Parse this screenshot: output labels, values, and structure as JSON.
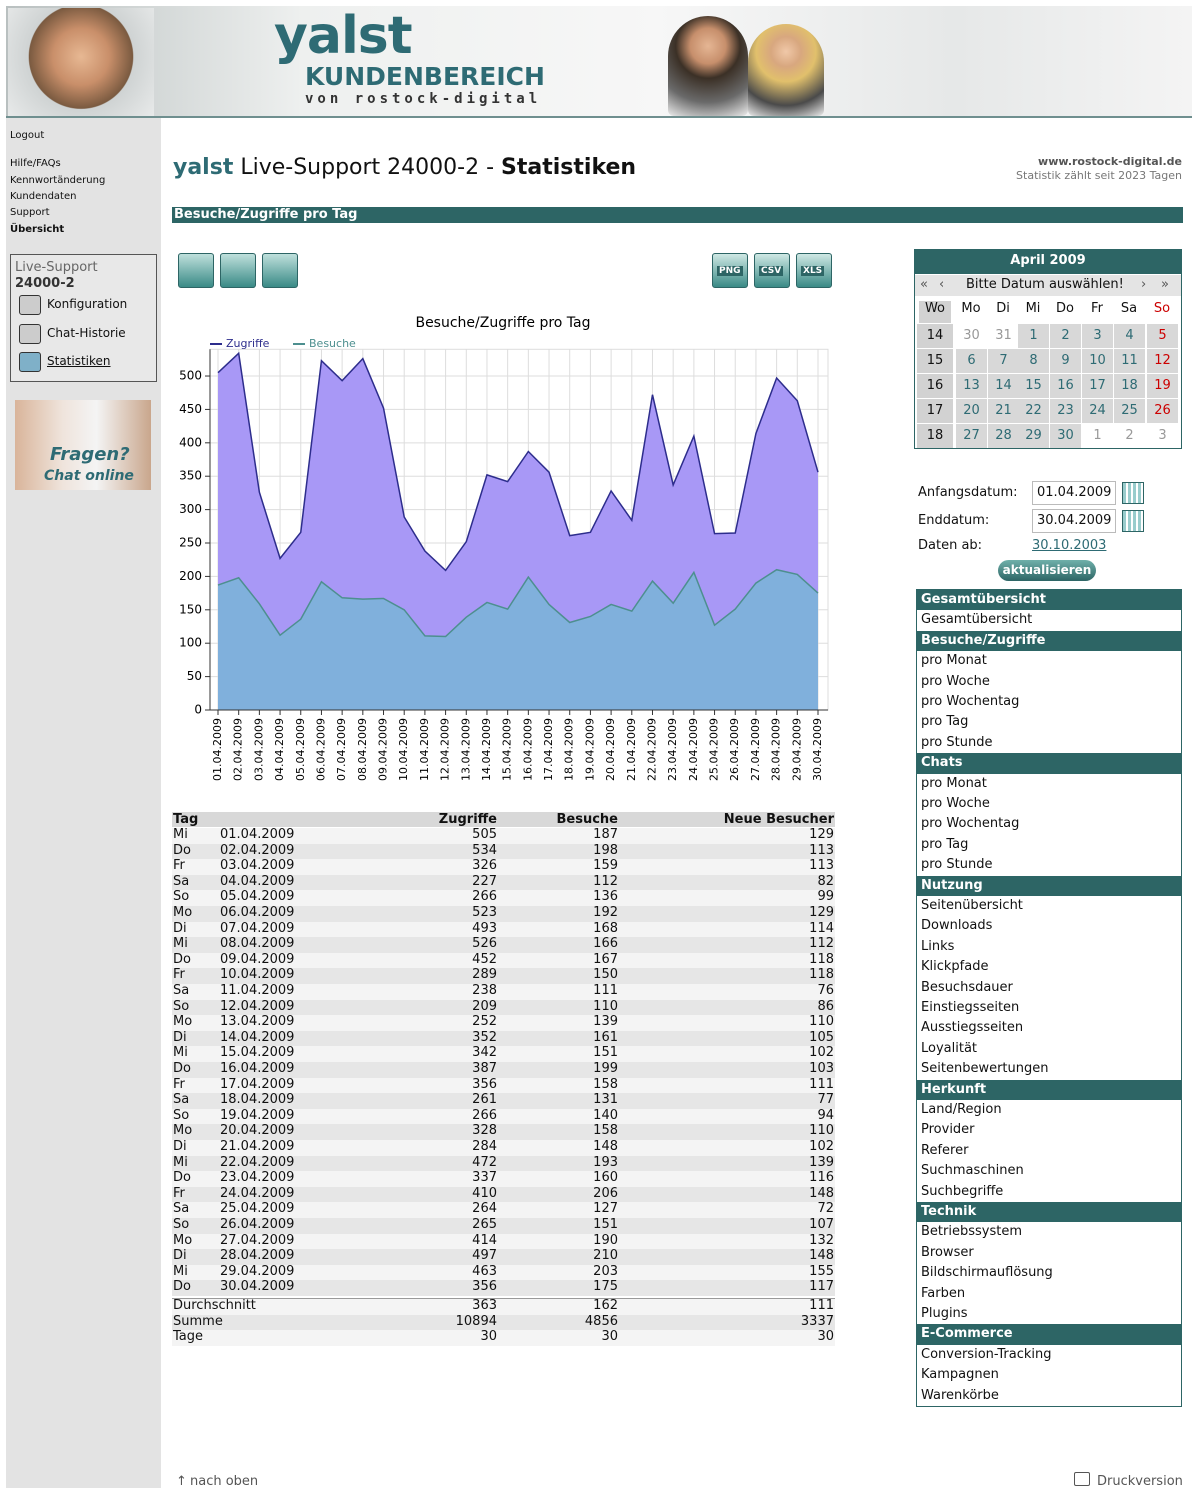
{
  "header": {
    "logo": "yalst",
    "product": "KUNDENBEREICH",
    "byline": "von rostock-digital"
  },
  "sidebar": {
    "links": [
      "Logout",
      "Hilfe/FAQs",
      "Kennwortänderung",
      "Kundendaten",
      "Support",
      "Übersicht"
    ],
    "box_title": "Live-Support",
    "box_id": "24000-2",
    "box_items": [
      "Konfiguration",
      "Chat-Historie",
      "Statistiken"
    ],
    "banner": [
      "Fragen?",
      "Chat online"
    ]
  },
  "page": {
    "brand": "yalst",
    "title": "Live-Support 24000-2 -",
    "title_bold": "Statistiken",
    "site": "www.rostock-digital.de",
    "since": "Statistik zählt seit 2023 Tagen",
    "section": "Besuche/Zugriffe pro Tag",
    "exports": [
      "PNG",
      "CSV",
      "XLS"
    ],
    "top_link": "nach oben",
    "print": "Druckversion"
  },
  "chart_data": {
    "type": "area",
    "title": "Besuche/Zugriffe pro Tag",
    "categories": [
      "01.04.2009",
      "02.04.2009",
      "03.04.2009",
      "04.04.2009",
      "05.04.2009",
      "06.04.2009",
      "07.04.2009",
      "08.04.2009",
      "09.04.2009",
      "10.04.2009",
      "11.04.2009",
      "12.04.2009",
      "13.04.2009",
      "14.04.2009",
      "15.04.2009",
      "16.04.2009",
      "17.04.2009",
      "18.04.2009",
      "19.04.2009",
      "20.04.2009",
      "21.04.2009",
      "22.04.2009",
      "23.04.2009",
      "24.04.2009",
      "25.04.2009",
      "26.04.2009",
      "27.04.2009",
      "28.04.2009",
      "29.04.2009",
      "30.04.2009"
    ],
    "series": [
      {
        "name": "Zugriffe",
        "color": "#2d2d8c",
        "fill": "#a898f6",
        "values": [
          505,
          534,
          326,
          227,
          266,
          523,
          493,
          526,
          452,
          289,
          238,
          209,
          252,
          352,
          342,
          387,
          356,
          261,
          266,
          328,
          284,
          472,
          337,
          410,
          264,
          265,
          414,
          497,
          463,
          356
        ]
      },
      {
        "name": "Besuche",
        "color": "#4d8f8f",
        "fill": "#80b0dc",
        "values": [
          187,
          198,
          159,
          112,
          136,
          192,
          168,
          166,
          167,
          150,
          111,
          110,
          139,
          161,
          151,
          199,
          158,
          131,
          140,
          158,
          148,
          193,
          160,
          206,
          127,
          151,
          190,
          210,
          203,
          175
        ]
      }
    ],
    "ylim": [
      0,
      540
    ],
    "yticks": [
      0,
      50,
      100,
      150,
      200,
      250,
      300,
      350,
      400,
      450,
      500
    ],
    "grid": true,
    "legend": "top-left"
  },
  "table": {
    "columns": [
      "Tag",
      "Zugriffe",
      "Besuche",
      "Neue Besucher"
    ],
    "weekdays": [
      "Mi",
      "Do",
      "Fr",
      "Sa",
      "So",
      "Mo",
      "Di",
      "Mi",
      "Do",
      "Fr",
      "Sa",
      "So",
      "Mo",
      "Di",
      "Mi",
      "Do",
      "Fr",
      "Sa",
      "So",
      "Mo",
      "Di",
      "Mi",
      "Do",
      "Fr",
      "Sa",
      "So",
      "Mo",
      "Di",
      "Mi",
      "Do"
    ],
    "new_visitors": [
      129,
      113,
      113,
      82,
      99,
      129,
      114,
      112,
      118,
      118,
      76,
      86,
      110,
      105,
      102,
      103,
      111,
      77,
      94,
      110,
      102,
      139,
      116,
      148,
      72,
      107,
      132,
      148,
      155,
      117
    ],
    "summary": [
      [
        "Durchschnitt",
        363,
        162,
        111
      ],
      [
        "Summe",
        10894,
        4856,
        3337
      ],
      [
        "Tage",
        30,
        30,
        30
      ]
    ]
  },
  "calendar": {
    "month": "April  2009",
    "prompt": "Bitte Datum auswählen!",
    "nav": [
      "«",
      "‹",
      "›",
      "»"
    ],
    "head": [
      "Wo",
      "Mo",
      "Di",
      "Mi",
      "Do",
      "Fr",
      "Sa",
      "So"
    ],
    "weeks": [
      {
        "week": 14,
        "days": [
          30,
          31,
          1,
          2,
          3,
          4,
          5
        ]
      },
      {
        "week": 15,
        "days": [
          6,
          7,
          8,
          9,
          10,
          11,
          12
        ]
      },
      {
        "week": 16,
        "days": [
          13,
          14,
          15,
          16,
          17,
          18,
          19
        ]
      },
      {
        "week": 17,
        "days": [
          20,
          21,
          22,
          23,
          24,
          25,
          26
        ]
      },
      {
        "week": 18,
        "days": [
          27,
          28,
          29,
          30,
          1,
          2,
          3
        ]
      }
    ]
  },
  "form": {
    "fields": [
      {
        "label": "Anfangsdatum:",
        "value": "01.04.2009"
      },
      {
        "label": "Enddatum:",
        "value": "30.04.2009"
      },
      {
        "label": "Daten ab:",
        "value": "30.10.2003"
      }
    ],
    "button": "aktualisieren"
  },
  "menu": [
    {
      "title": "Gesamtübersicht",
      "items": [
        "Gesamtübersicht"
      ]
    },
    {
      "title": "Besuche/Zugriffe",
      "items": [
        "pro Monat",
        "pro Woche",
        "pro Wochentag",
        "pro Tag",
        "pro Stunde"
      ]
    },
    {
      "title": "Chats",
      "items": [
        "pro Monat",
        "pro Woche",
        "pro Wochentag",
        "pro Tag",
        "pro Stunde"
      ]
    },
    {
      "title": "Nutzung",
      "items": [
        "Seitenübersicht",
        "Downloads",
        "Links",
        "Klickpfade",
        "Besuchsdauer",
        "Einstiegsseiten",
        "Ausstiegsseiten",
        "Loyalität",
        "Seitenbewertungen"
      ]
    },
    {
      "title": "Herkunft",
      "items": [
        "Land/Region",
        "Provider",
        "Referer",
        "Suchmaschinen",
        "Suchbegriffe"
      ]
    },
    {
      "title": "Technik",
      "items": [
        "Betriebssystem",
        "Browser",
        "Bildschirmauflösung",
        "Farben",
        "Plugins"
      ]
    },
    {
      "title": "E-Commerce",
      "items": [
        "Conversion-Tracking",
        "Kampagnen",
        "Warenkörbe"
      ]
    }
  ]
}
